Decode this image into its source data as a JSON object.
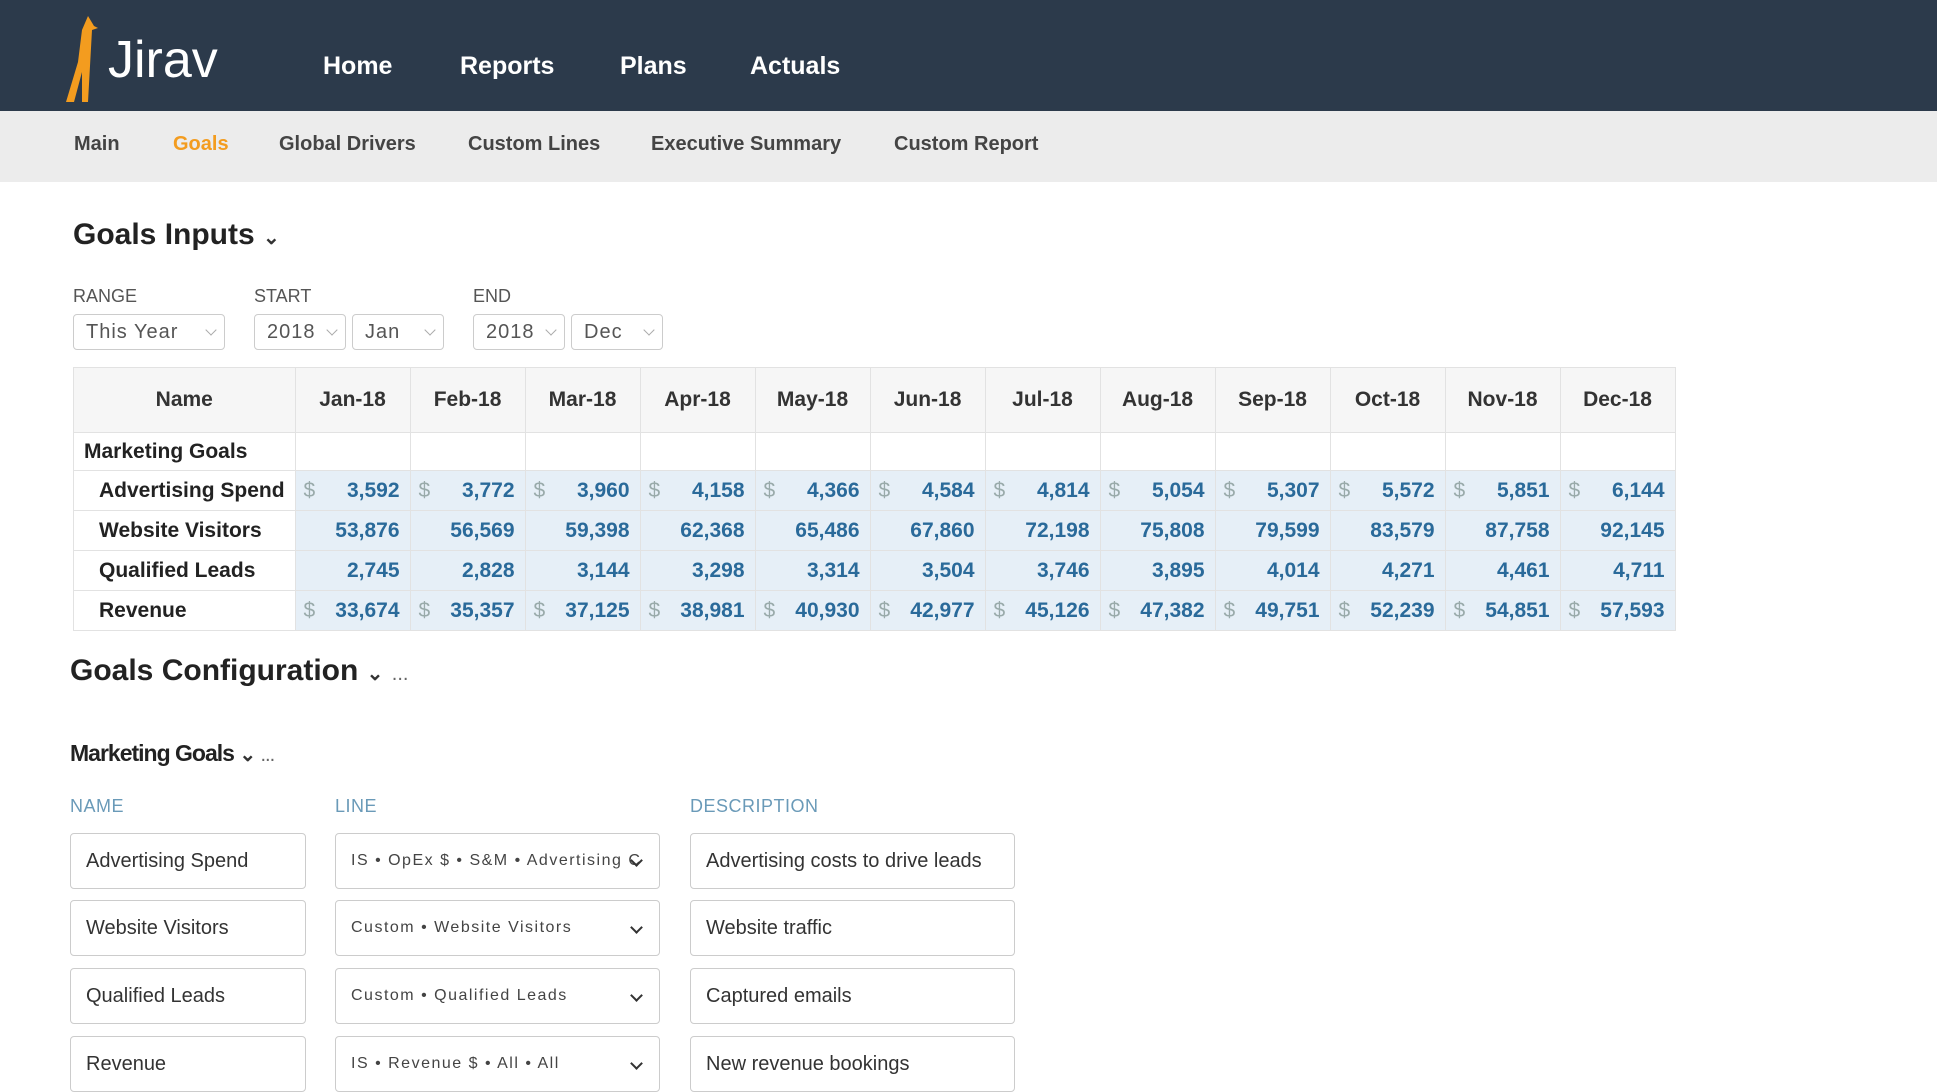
{
  "nav": {
    "brand": "Jirav",
    "items": [
      "Home",
      "Reports",
      "Plans",
      "Actuals"
    ]
  },
  "subnav": {
    "items": [
      "Main",
      "Goals",
      "Global Drivers",
      "Custom Lines",
      "Executive Summary",
      "Custom Report"
    ],
    "active": 1
  },
  "goals_inputs": {
    "title": "Goals Inputs",
    "filters": [
      {
        "label": "RANGE",
        "fields": [
          "This Year"
        ]
      },
      {
        "label": "START",
        "fields": [
          "2018",
          "Jan"
        ]
      },
      {
        "label": "END",
        "fields": [
          "2018",
          "Dec"
        ]
      }
    ],
    "table": {
      "header": [
        "Name",
        "Jan-18",
        "Feb-18",
        "Mar-18",
        "Apr-18",
        "May-18",
        "Jun-18",
        "Jul-18",
        "Aug-18",
        "Sep-18",
        "Oct-18",
        "Nov-18",
        "Dec-18"
      ],
      "group": "Marketing Goals",
      "rows": [
        {
          "name": "Advertising Spend",
          "prefix": "$",
          "values": [
            "3,592",
            "3,772",
            "3,960",
            "4,158",
            "4,366",
            "4,584",
            "4,814",
            "5,054",
            "5,307",
            "5,572",
            "5,851",
            "6,144"
          ]
        },
        {
          "name": "Website Visitors",
          "values": [
            "53,876",
            "56,569",
            "59,398",
            "62,368",
            "65,486",
            "67,860",
            "72,198",
            "75,808",
            "79,599",
            "83,579",
            "87,758",
            "92,145"
          ]
        },
        {
          "name": "Qualified Leads",
          "values": [
            "2,745",
            "2,828",
            "3,144",
            "3,298",
            "3,314",
            "3,504",
            "3,746",
            "3,895",
            "4,014",
            "4,271",
            "4,461",
            "4,711"
          ]
        },
        {
          "name": "Revenue",
          "prefix": "$",
          "values": [
            "33,674",
            "35,357",
            "37,125",
            "38,981",
            "40,930",
            "42,977",
            "45,126",
            "47,382",
            "49,751",
            "52,239",
            "54,851",
            "57,593"
          ]
        }
      ]
    }
  },
  "goals_configuration": {
    "title": "Goals Configuration",
    "more": "...",
    "group": {
      "title": "Marketing Goals",
      "more": "...",
      "columns": [
        "NAME",
        "LINE",
        "DESCRIPTION"
      ],
      "rows": [
        [
          "Advertising Spend",
          "IS • OpEx $ • S&M • Advertising C",
          "Advertising costs to drive leads"
        ],
        [
          "Website Visitors",
          "Custom • Website Visitors",
          "Website traffic"
        ],
        [
          "Qualified Leads",
          "Custom • Qualified Leads",
          "Captured emails"
        ],
        [
          "Revenue",
          "IS • Revenue $ • All • All",
          "New revenue bookings"
        ]
      ]
    }
  }
}
